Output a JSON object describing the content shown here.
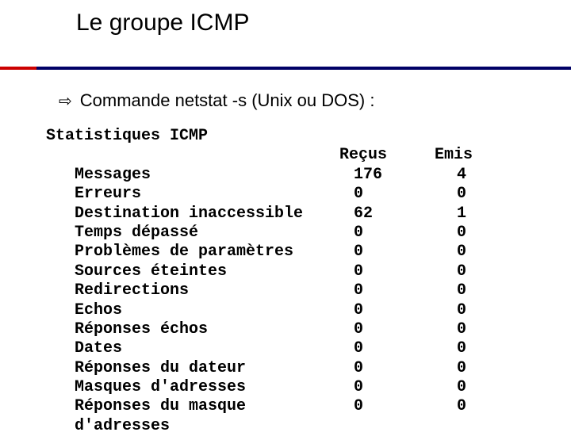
{
  "title": "Le groupe ICMP",
  "bullet": {
    "text": "Commande netstat -s (Unix ou DOS) :"
  },
  "stats": {
    "header_label": "Statistiques ICMP",
    "col_recv": "Reçus",
    "col_emit": "Emis",
    "rows": [
      {
        "label": "Messages",
        "recv": "176",
        "emit": "4"
      },
      {
        "label": "Erreurs",
        "recv": "0",
        "emit": "0"
      },
      {
        "label": "Destination inaccessible",
        "recv": "62",
        "emit": "1"
      },
      {
        "label": "Temps dépassé",
        "recv": "0",
        "emit": "0"
      },
      {
        "label": "Problèmes de paramètres",
        "recv": "0",
        "emit": "0"
      },
      {
        "label": "Sources éteintes",
        "recv": "0",
        "emit": "0"
      },
      {
        "label": "Redirections",
        "recv": "0",
        "emit": "0"
      },
      {
        "label": "Echos",
        "recv": "0",
        "emit": "0"
      },
      {
        "label": "Réponses échos",
        "recv": "0",
        "emit": "0"
      },
      {
        "label": "Dates",
        "recv": "0",
        "emit": "0"
      },
      {
        "label": "Réponses du dateur",
        "recv": "0",
        "emit": "0"
      },
      {
        "label": "Masques d'adresses",
        "recv": "0",
        "emit": "0"
      },
      {
        "label": "Réponses du masque d'adresses",
        "recv": "0",
        "emit": "0"
      }
    ]
  },
  "colors": {
    "accent_red": "#cc0000",
    "accent_navy": "#000066",
    "background": "#ffffff",
    "text": "#000000"
  },
  "typography": {
    "title_fontsize": 30,
    "bullet_fontsize": 22,
    "mono_fontsize": 20,
    "mono_family": "Courier New",
    "mono_weight": "bold"
  }
}
